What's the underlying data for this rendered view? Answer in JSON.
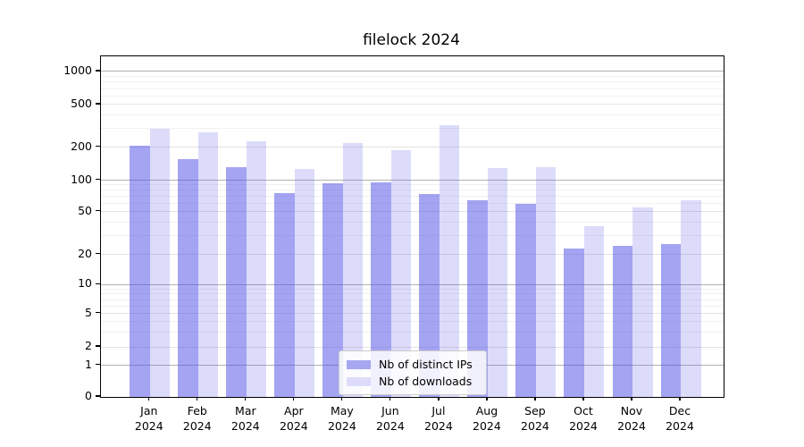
{
  "chart_data": {
    "type": "bar",
    "title": "filelock 2024",
    "categories": [
      "Jan",
      "Feb",
      "Mar",
      "Apr",
      "May",
      "Jun",
      "Jul",
      "Aug",
      "Sep",
      "Oct",
      "Nov",
      "Dec"
    ],
    "category_year": "2024",
    "series": [
      {
        "name": "Nb of distinct IPs",
        "color": "#a6a6f1",
        "bar_fill": "rgba(80,80,232,0.52)",
        "values": [
          205,
          156,
          132,
          75,
          94,
          96,
          74,
          64,
          60,
          23,
          24,
          25
        ]
      },
      {
        "name": "Nb of downloads",
        "color": "#dcdcfa",
        "bar_fill": "rgba(80,80,232,0.2)",
        "values": [
          300,
          277,
          229,
          126,
          219,
          189,
          320,
          129,
          132,
          37,
          55,
          65
        ]
      }
    ],
    "y_ticks": [
      0,
      1,
      2,
      5,
      10,
      20,
      50,
      100,
      200,
      500,
      1000
    ],
    "minor_gridlines": [
      3,
      4,
      6,
      7,
      8,
      9,
      30,
      40,
      60,
      70,
      80,
      90,
      300,
      400,
      600,
      700,
      800,
      900
    ],
    "scale": "asinh",
    "ylim": [
      0,
      1400
    ],
    "grid": true,
    "legend_position": "lower-center",
    "xlabel": "",
    "ylabel": ""
  },
  "colors": {
    "major_grid": "#b2b2b2",
    "labeled_grid": "#e3e3e3",
    "minor_grid": "#f1f1f1",
    "axis": "#000000"
  }
}
